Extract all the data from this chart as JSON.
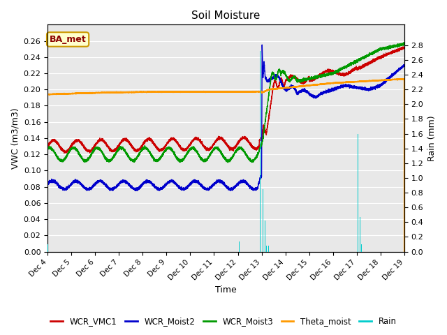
{
  "title": "Soil Moisture",
  "ylabel_left": "VWC (m3/m3)",
  "ylabel_right": "Rain (mm)",
  "xlabel": "Time",
  "annotation": "BA_met",
  "ylim_left": [
    0.0,
    0.28
  ],
  "ylim_right": [
    0.0,
    3.08
  ],
  "yticks_left": [
    0.0,
    0.02,
    0.04,
    0.06,
    0.08,
    0.1,
    0.12,
    0.14,
    0.16,
    0.18,
    0.2,
    0.22,
    0.24,
    0.26
  ],
  "yticks_right": [
    0.0,
    0.2,
    0.4,
    0.6,
    0.8,
    1.0,
    1.2,
    1.4,
    1.6,
    1.8,
    2.0,
    2.2,
    2.4,
    2.6,
    2.8
  ],
  "colors": {
    "WCR_VMC1": "#cc0000",
    "WCR_Moist2": "#0000cc",
    "WCR_Moist3": "#009900",
    "Theta_moist": "#ff9900",
    "Rain": "#00cccc",
    "background": "#e8e8e8",
    "annotation_bg": "#ffffcc",
    "annotation_border": "#cc9900"
  },
  "xtick_labels": [
    "Dec 4",
    "Dec 5",
    "Dec 6",
    "Dec 7",
    "Dec 8",
    "Dec 9",
    "Dec 10",
    "Dec 11",
    "Dec 12",
    "Dec 13",
    "Dec 14",
    "Dec 15",
    "Dec 16",
    "Dec 17",
    "Dec 18",
    "Dec 19"
  ],
  "legend_labels": [
    "WCR_VMC1",
    "WCR_Moist2",
    "WCR_Moist3",
    "Theta_moist",
    "Rain"
  ]
}
